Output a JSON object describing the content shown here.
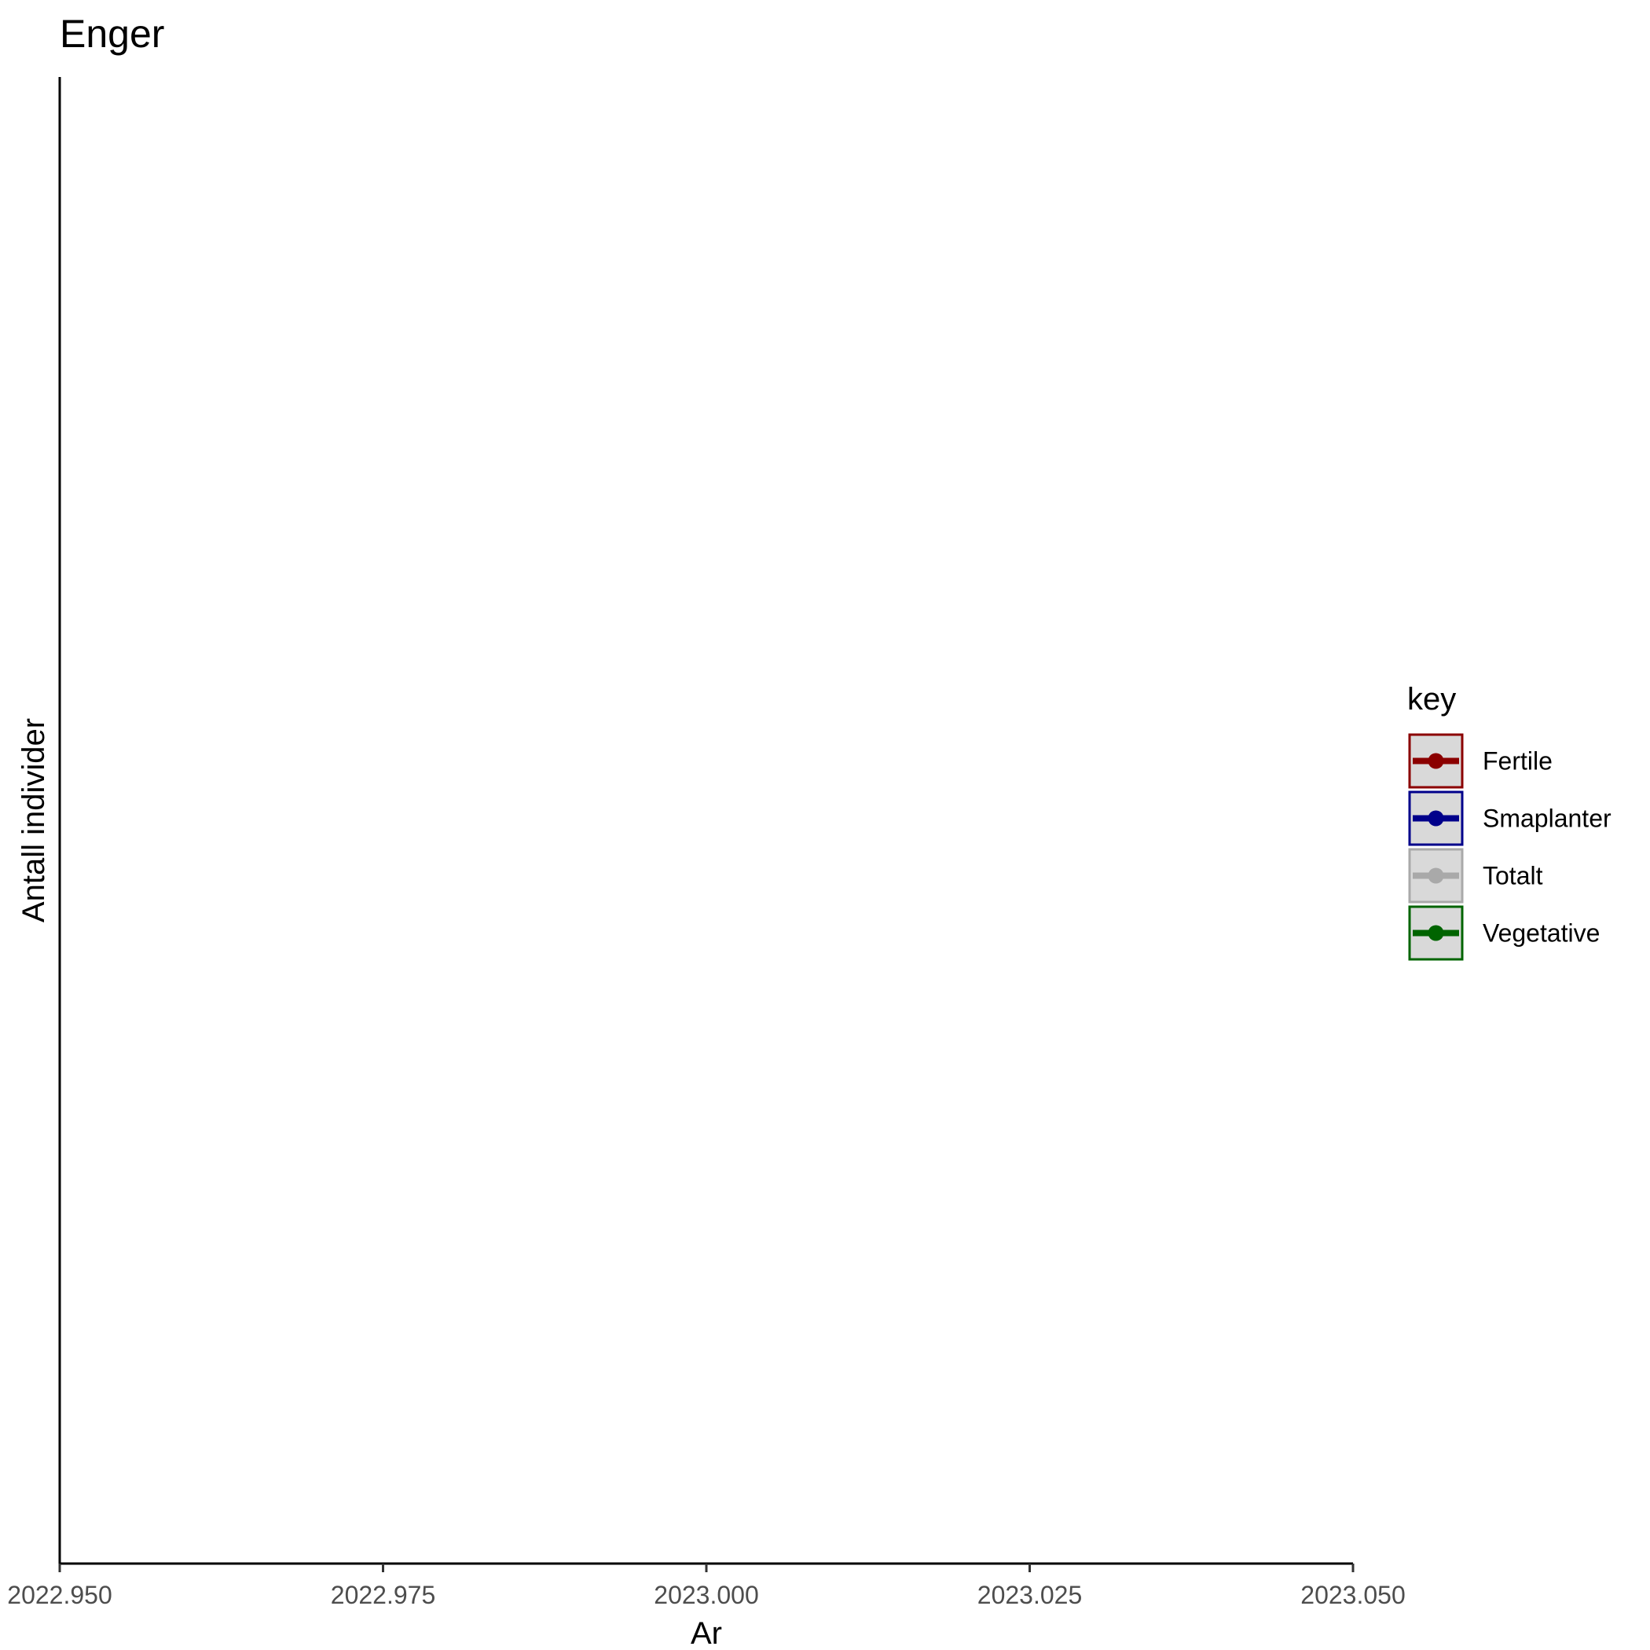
{
  "chart_data": {
    "type": "line",
    "title": "Enger",
    "xlabel": "Ar",
    "ylabel": "Antall individer",
    "xlim": [
      2022.95,
      2023.05
    ],
    "x_ticks": [
      "2022.950",
      "2022.975",
      "2023.000",
      "2023.025",
      "2023.050"
    ],
    "x_tick_values": [
      2022.95,
      2022.975,
      2023.0,
      2023.025,
      2023.05
    ],
    "grid": false,
    "legend": {
      "title": "key",
      "placement": "right",
      "entries": [
        {
          "label": "Fertile",
          "color": "#8b0000"
        },
        {
          "label": "Smaplanter",
          "color": "#00008b"
        },
        {
          "label": "Totalt",
          "color": "#a9a9a9"
        },
        {
          "label": "Vegetative",
          "color": "#006400"
        }
      ]
    },
    "series": [
      {
        "name": "Fertile",
        "color": "#8b0000",
        "x": [],
        "y": []
      },
      {
        "name": "Smaplanter",
        "color": "#00008b",
        "x": [],
        "y": []
      },
      {
        "name": "Totalt",
        "color": "#a9a9a9",
        "x": [],
        "y": []
      },
      {
        "name": "Vegetative",
        "color": "#006400",
        "x": [],
        "y": []
      }
    ]
  }
}
